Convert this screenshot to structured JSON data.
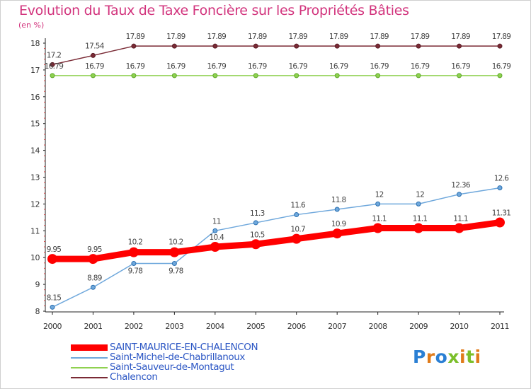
{
  "title": "Evolution du Taux de Taxe Foncière sur les Propriétés Bâties",
  "unit": "(en %)",
  "logo": {
    "text": "Proxiti",
    "colors": [
      "#2a7fd4",
      "#e07b1a",
      "#2a7fd4",
      "#7bbf2a",
      "#e07b1a",
      "#7bbf2a",
      "#e07b1a"
    ]
  },
  "chart_data": {
    "type": "line",
    "x": [
      "2000",
      "2001",
      "2002",
      "2003",
      "2004",
      "2005",
      "2006",
      "2007",
      "2008",
      "2009",
      "2010",
      "2011"
    ],
    "ylim": [
      8,
      18
    ],
    "yticks": [
      "8",
      "9",
      "10",
      "11",
      "12",
      "13",
      "14",
      "15",
      "16",
      "17",
      "18"
    ],
    "grid": false,
    "legend_position": "bottom",
    "series": [
      {
        "name": "SAINT-MAURICE-EN-CHALENCON",
        "color": "#ff0000",
        "width": 9,
        "values": [
          9.95,
          9.95,
          10.2,
          10.2,
          10.4,
          10.5,
          10.7,
          10.9,
          11.1,
          11.1,
          11.1,
          11.31
        ],
        "labels": [
          "9.95",
          "9.95",
          "10.2",
          "10.2",
          "10.4",
          "10.5",
          "10.7",
          "10.9",
          "11.1",
          "11.1",
          "11.1",
          "11.31"
        ]
      },
      {
        "name": "Saint-Michel-de-Chabrillanoux",
        "color": "#6fa8dc",
        "width": 1.5,
        "values": [
          8.15,
          8.89,
          9.78,
          9.78,
          11,
          11.3,
          11.6,
          11.8,
          12,
          12,
          12.36,
          12.6
        ],
        "labels": [
          "8.15",
          "8.89",
          "9.78",
          "9.78",
          "11",
          "11.3",
          "11.6",
          "11.8",
          "12",
          "12",
          "12.36",
          "12.6"
        ]
      },
      {
        "name": "Saint-Sauveur-de-Montagut",
        "color": "#8fd150",
        "width": 1.5,
        "values": [
          16.79,
          16.79,
          16.79,
          16.79,
          16.79,
          16.79,
          16.79,
          16.79,
          16.79,
          16.79,
          16.79,
          16.79
        ],
        "labels": [
          "16.79",
          "16.79",
          "16.79",
          "16.79",
          "16.79",
          "16.79",
          "16.79",
          "16.79",
          "16.79",
          "16.79",
          "16.79",
          "16.79"
        ]
      },
      {
        "name": "Chalencon",
        "color": "#7a2a35",
        "width": 1.5,
        "values": [
          17.2,
          17.54,
          17.89,
          17.89,
          17.89,
          17.89,
          17.89,
          17.89,
          17.89,
          17.89,
          17.89,
          17.89
        ],
        "labels": [
          "17.2",
          "17.54",
          "17.89",
          "17.89",
          "17.89",
          "17.89",
          "17.89",
          "17.89",
          "17.89",
          "17.89",
          "17.89",
          "17.89"
        ]
      }
    ]
  }
}
